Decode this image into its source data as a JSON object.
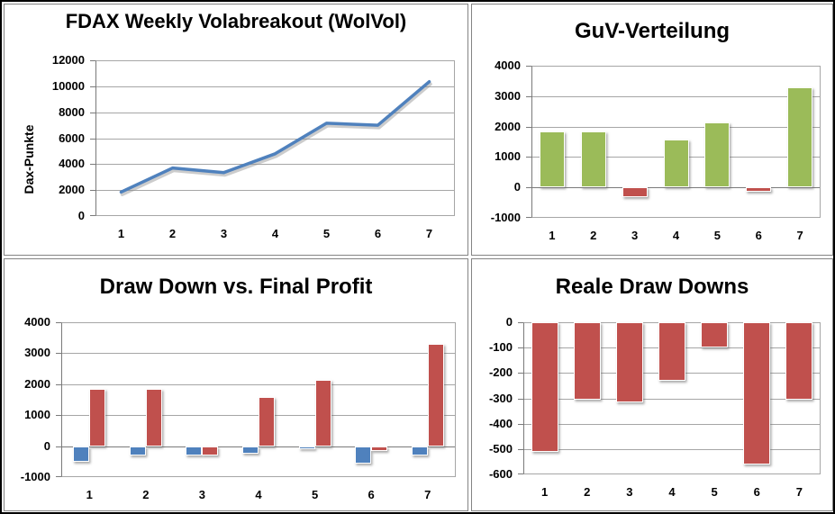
{
  "colors": {
    "line_blue": "#4F81BD",
    "bar_green": "#9BBB59",
    "bar_red": "#C0504D",
    "bar_blue": "#4F81BD",
    "gridline": "#A6A6A6",
    "axis": "#7A7A7A",
    "panel_border": "#848484",
    "outer_border": "#000000"
  },
  "chart_data": [
    {
      "type": "line",
      "title": "FDAX Weekly Volabreakout (WolVol)",
      "ylabel": "Dax-Punkte",
      "categories": [
        "1",
        "2",
        "3",
        "4",
        "5",
        "6",
        "7"
      ],
      "values": [
        1850,
        3700,
        3350,
        4800,
        7150,
        7000,
        10350
      ],
      "ylim": [
        0,
        12000
      ],
      "ytick_step": 2000,
      "line_color": "#4F81BD",
      "grid": true,
      "legend": "none"
    },
    {
      "type": "bar",
      "title": "GuV-Verteilung",
      "ylabel": "",
      "categories": [
        "1",
        "2",
        "3",
        "4",
        "5",
        "6",
        "7"
      ],
      "values": [
        1850,
        1850,
        -310,
        1580,
        2150,
        -150,
        3300
      ],
      "ylim": [
        -1000,
        4000
      ],
      "ytick_step": 1000,
      "positive_color": "#9BBB59",
      "negative_color": "#C0504D",
      "grid": true,
      "legend": "none"
    },
    {
      "type": "bar",
      "title": "Draw Down vs. Final Profit",
      "ylabel": "",
      "categories": [
        "1",
        "2",
        "3",
        "4",
        "5",
        "6",
        "7"
      ],
      "series": [
        {
          "name": "Draw Down",
          "color": "#4F81BD",
          "values": [
            -510,
            -305,
            -315,
            -230,
            -100,
            -560,
            -305
          ]
        },
        {
          "name": "Final Profit",
          "color": "#C0504D",
          "values": [
            1850,
            1850,
            -310,
            1580,
            2150,
            -150,
            3300
          ]
        }
      ],
      "ylim": [
        -1000,
        4000
      ],
      "ytick_step": 1000,
      "grid": true,
      "legend": "none"
    },
    {
      "type": "bar",
      "title": "Reale Draw Downs",
      "ylabel": "",
      "categories": [
        "1",
        "2",
        "3",
        "4",
        "5",
        "6",
        "7"
      ],
      "values": [
        -510,
        -305,
        -315,
        -230,
        -100,
        -560,
        -305
      ],
      "ylim": [
        -600,
        0
      ],
      "ytick_step": 100,
      "positive_color": "#C0504D",
      "negative_color": "#C0504D",
      "grid": true,
      "legend": "none"
    }
  ]
}
